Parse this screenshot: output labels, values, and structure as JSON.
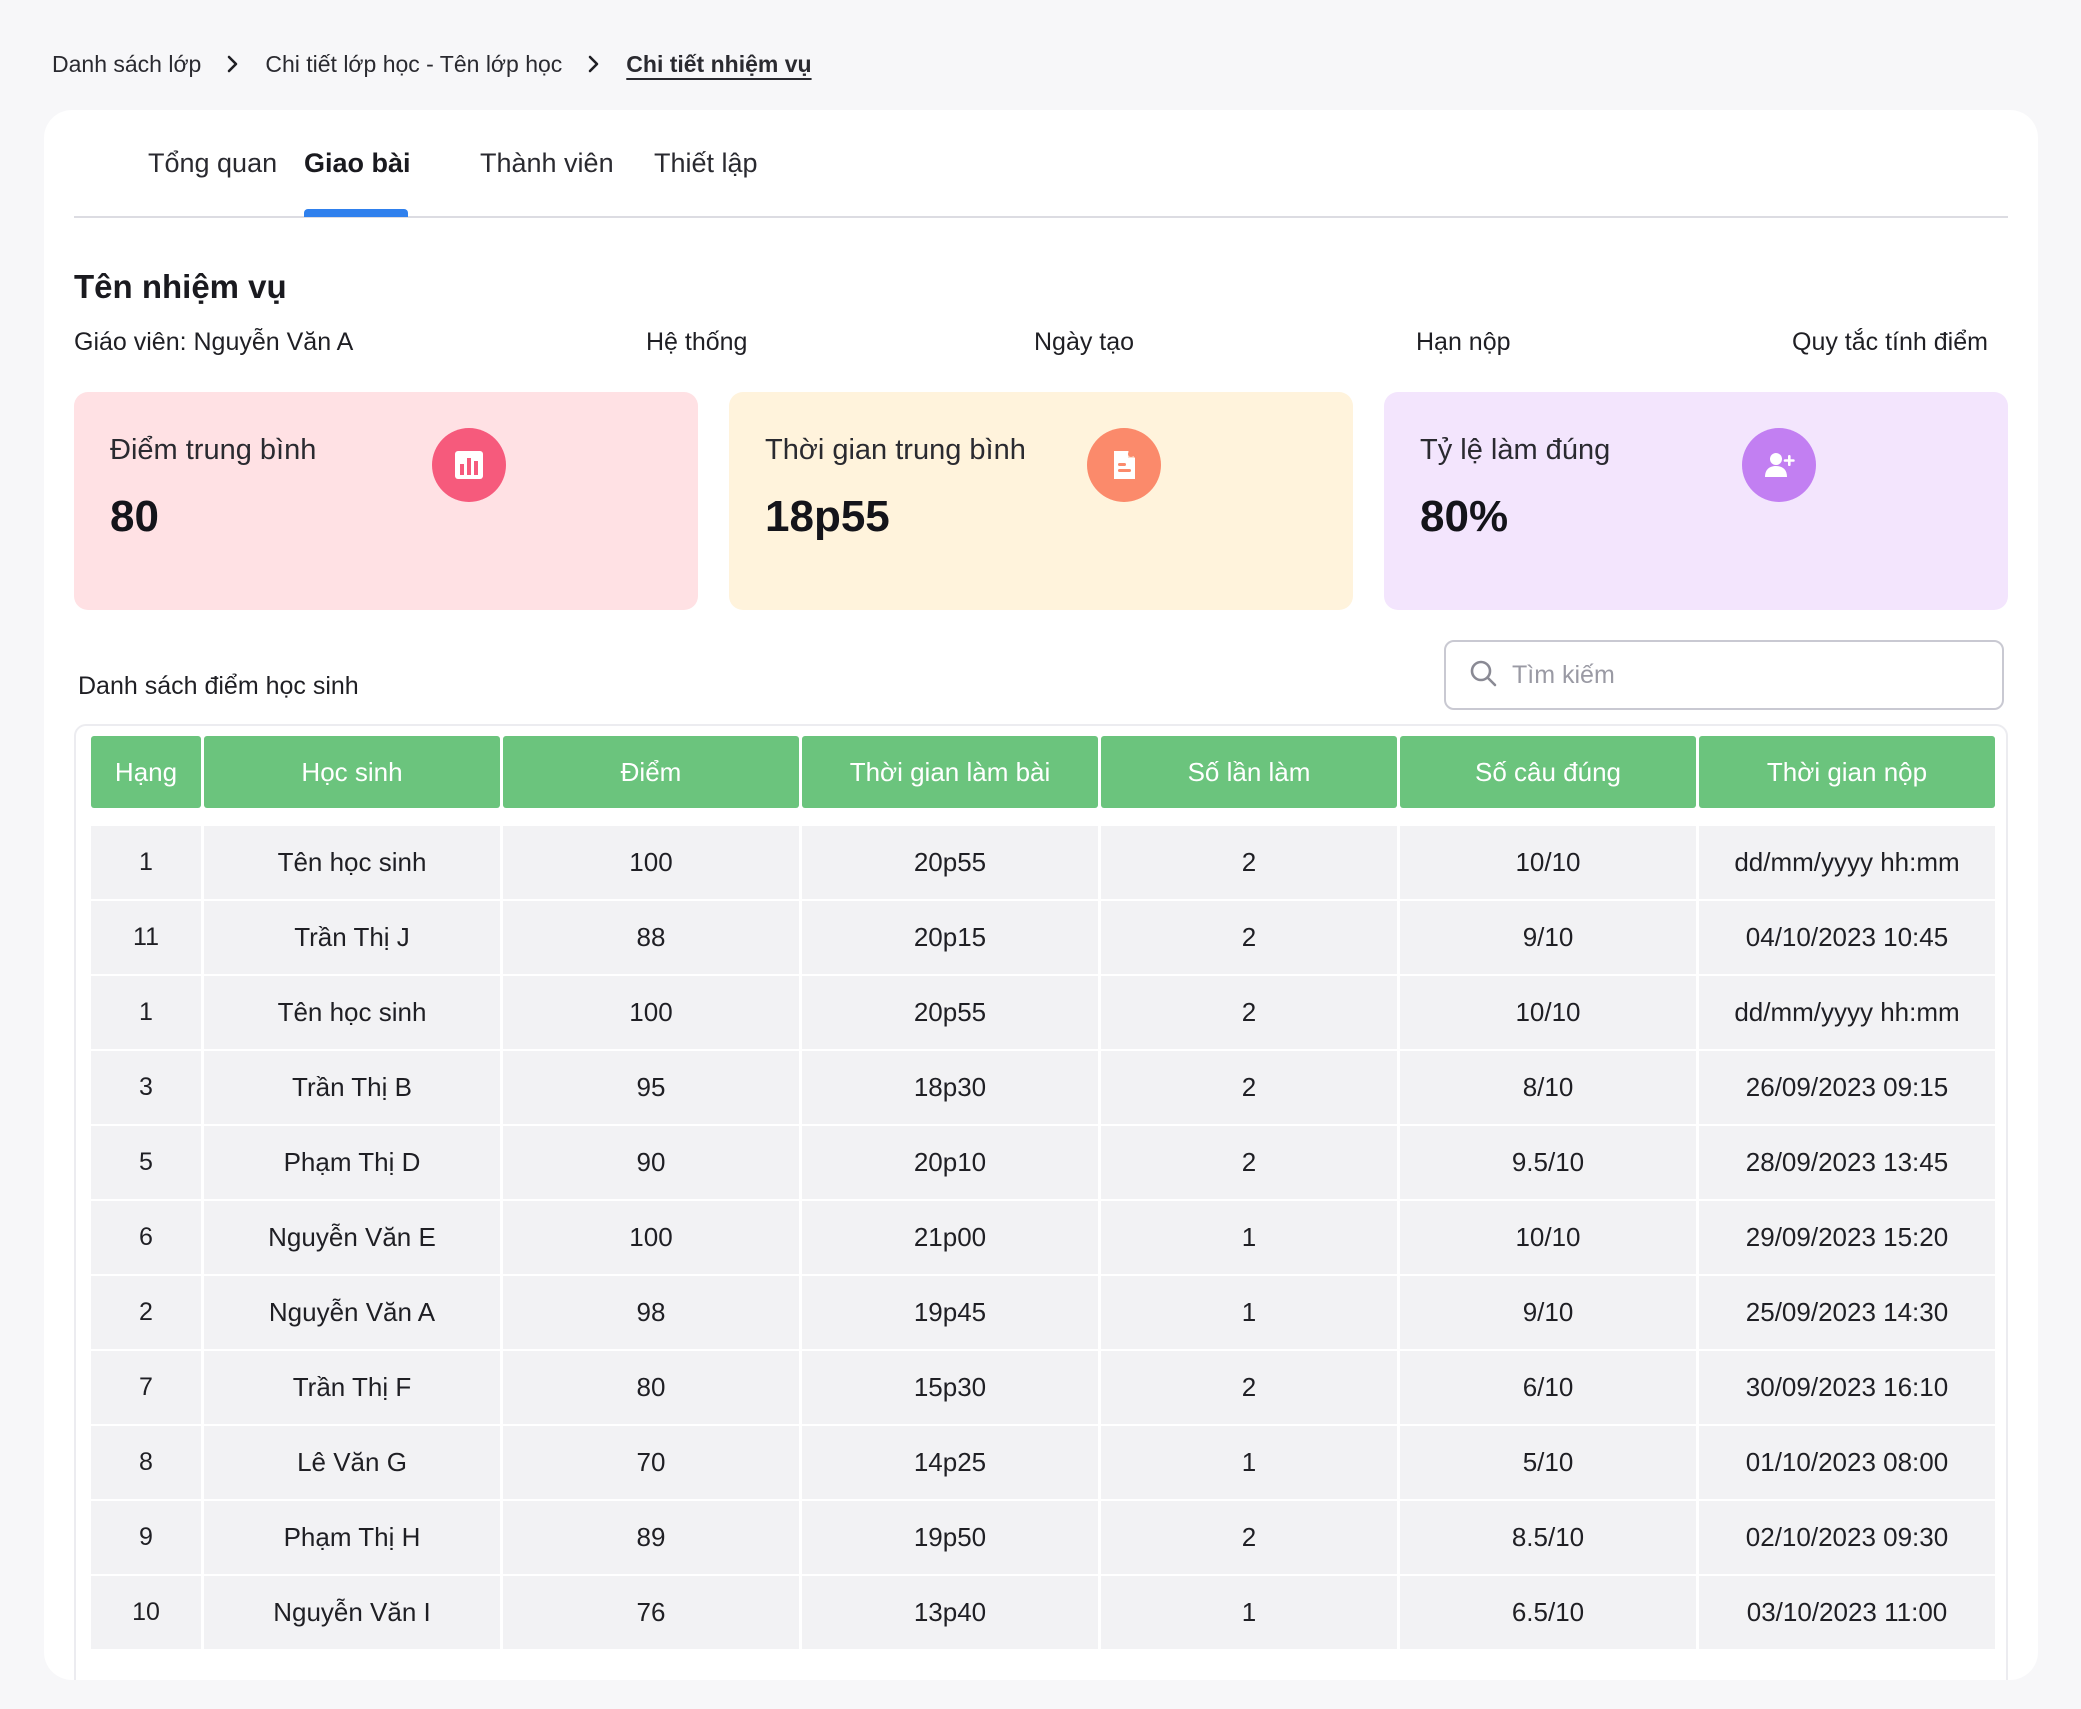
{
  "breadcrumb": {
    "items": [
      "Danh sách lớp",
      "Chi tiết lớp học - Tên lớp học",
      "Chi tiết nhiệm vụ"
    ]
  },
  "tabs": [
    {
      "label": "Tổng quan",
      "active": false
    },
    {
      "label": "Giao bài",
      "active": true
    },
    {
      "label": "Thành viên",
      "active": false
    },
    {
      "label": "Thiết lập",
      "active": false
    }
  ],
  "task": {
    "title": "Tên nhiệm vụ",
    "teacher": "Giáo viên: Nguyễn Văn A",
    "system": "Hệ thống",
    "created": "Ngày tạo",
    "deadline": "Hạn nộp",
    "scoring_rule": "Quy tắc tính điểm"
  },
  "stats": [
    {
      "label": "Điểm trung bình",
      "value": "80",
      "icon": "bar-chart-icon",
      "bg": "#ffe1e4",
      "icon_bg": "#f65a7c"
    },
    {
      "label": "Thời gian trung bình",
      "value": "18p55",
      "icon": "document-icon",
      "bg": "#fff3dc",
      "icon_bg": "#fb8a6b"
    },
    {
      "label": "Tỷ lệ làm đúng",
      "value": "80%",
      "icon": "add-user-icon",
      "bg": "#f3e5fd",
      "icon_bg": "#c27ff2"
    }
  ],
  "list": {
    "title": "Danh sách điểm học sinh",
    "search_placeholder": "Tìm kiếm"
  },
  "table": {
    "headers": [
      "Hạng",
      "Học sinh",
      "Điểm",
      "Thời gian làm bài",
      "Số lần làm",
      "Số câu đúng",
      "Thời gian nộp"
    ],
    "rows": [
      [
        "1",
        "Tên học sinh",
        "100",
        "20p55",
        "2",
        "10/10",
        "dd/mm/yyyy hh:mm"
      ],
      [
        "11",
        "Trần Thị J",
        "88",
        "20p15",
        "2",
        "9/10",
        "04/10/2023 10:45"
      ],
      [
        "1",
        "Tên học sinh",
        "100",
        "20p55",
        "2",
        "10/10",
        "dd/mm/yyyy hh:mm"
      ],
      [
        "3",
        "Trần Thị B",
        "95",
        "18p30",
        "2",
        "8/10",
        "26/09/2023 09:15"
      ],
      [
        "5",
        "Phạm Thị D",
        "90",
        "20p10",
        "2",
        "9.5/10",
        "28/09/2023 13:45"
      ],
      [
        "6",
        "Nguyễn Văn E",
        "100",
        "21p00",
        "1",
        "10/10",
        "29/09/2023 15:20"
      ],
      [
        "2",
        "Nguyễn Văn A",
        "98",
        "19p45",
        "1",
        "9/10",
        "25/09/2023 14:30"
      ],
      [
        "7",
        "Trần Thị F",
        "80",
        "15p30",
        "2",
        "6/10",
        "30/09/2023 16:10"
      ],
      [
        "8",
        "Lê Văn G",
        "70",
        "14p25",
        "1",
        "5/10",
        "01/10/2023 08:00"
      ],
      [
        "9",
        "Phạm Thị H",
        "89",
        "19p50",
        "2",
        "8.5/10",
        "02/10/2023 09:30"
      ],
      [
        "10",
        "Nguyễn Văn I",
        "76",
        "13p40",
        "1",
        "6.5/10",
        "03/10/2023 11:00"
      ]
    ]
  }
}
